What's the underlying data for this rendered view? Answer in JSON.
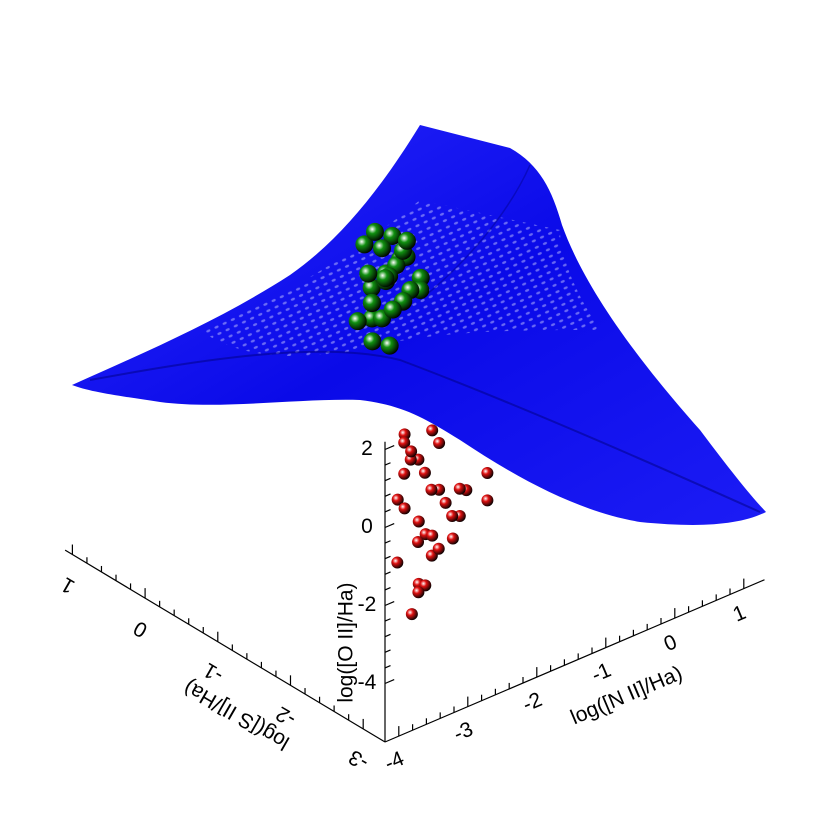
{
  "chart_data": {
    "type": "scatter3d",
    "xlabel": "log([N II]/Ha)",
    "ylabel": "log([S II]/Ha)",
    "zlabel": "log([O II]/Ha)",
    "xlim": [
      -4.2,
      1.3
    ],
    "ylim": [
      -3.3,
      1.1
    ],
    "zlim": [
      -5.5,
      2.2
    ],
    "xticks": [
      -4,
      -3,
      -2,
      -1,
      0,
      1
    ],
    "yticks": [
      -3,
      -2,
      -1,
      0,
      1
    ],
    "zticks": [
      -4,
      -2,
      0,
      2
    ],
    "series": [
      {
        "color": "#e01010",
        "x": [
          -3.6,
          -3.5,
          -3.4,
          -3.3,
          -3.2,
          -3.1,
          -3.0,
          -2.9,
          -2.8,
          -2.7,
          -3.6,
          -3.5,
          -3.3,
          -3.1,
          -2.9,
          -2.6,
          -2.4,
          -2.2,
          -2.0,
          -1.9,
          -3.7,
          -3.5,
          -3.4,
          -3.2,
          -3.0,
          -2.8,
          -3.6,
          -3.4,
          -3.3,
          -3.1,
          -2.5,
          -2.3,
          -2.1,
          -3.5,
          -3.2,
          -3.0,
          -3.6,
          -3.4,
          -2.7,
          -2.4
        ],
        "y": [
          -3.0,
          -2.9,
          -3.0,
          -2.8,
          -2.9,
          -3.0,
          -2.8,
          -2.9,
          -3.0,
          -2.8,
          -2.9,
          -3.1,
          -3.0,
          -2.9,
          -3.0,
          -2.9,
          -3.0,
          -2.9,
          -3.0,
          -3.1,
          -3.0,
          -2.9,
          -3.1,
          -3.0,
          -2.9,
          -3.0,
          -3.1,
          -3.0,
          -2.9,
          -3.0,
          -3.0,
          -2.9,
          -3.0,
          -3.1,
          -3.0,
          -2.9,
          -3.0,
          -2.9,
          -3.0,
          -3.0
        ],
        "z": [
          1.6,
          1.2,
          0.8,
          0.5,
          0.2,
          -0.2,
          -0.5,
          -0.8,
          -1.1,
          -1.4,
          -1.8,
          -2.2,
          -2.5,
          -2.0,
          -1.6,
          -0.7,
          -0.3,
          0.1,
          0.3,
          -0.2,
          0.0,
          0.4,
          -1.0,
          -1.3,
          -1.9,
          -0.4,
          -2.9,
          -2.6,
          -1.5,
          1.0,
          0.6,
          0.9,
          0.4,
          -0.6,
          1.4,
          1.8,
          -0.3,
          0.9,
          1.1,
          -1.0
        ]
      },
      {
        "color": "#109010",
        "x": [
          -0.8,
          -0.7,
          -0.6,
          -0.5,
          -0.4,
          -0.3,
          -0.2,
          -0.1,
          0.0,
          -0.75,
          -0.65,
          -0.55,
          -0.45,
          -0.35,
          -0.25,
          -0.15,
          -0.6,
          -0.5,
          -0.4,
          -0.3,
          -0.7,
          -0.45,
          -0.2,
          -0.55,
          -0.35,
          -0.65,
          -0.4,
          -0.3
        ],
        "y": [
          0.1,
          0.2,
          0.3,
          0.2,
          0.1,
          0.3,
          0.2,
          0.1,
          0.2,
          0.35,
          0.25,
          0.15,
          0.3,
          0.2,
          0.1,
          0.3,
          0.4,
          0.35,
          0.25,
          0.15,
          0.2,
          0.3,
          0.25,
          0.1,
          0.35,
          0.3,
          0.2,
          0.1
        ],
        "z": [
          -1.6,
          -1.2,
          -0.6,
          -0.2,
          0.2,
          0.5,
          0.0,
          -0.5,
          -1.0,
          -1.4,
          -0.9,
          -0.3,
          0.3,
          -0.1,
          -0.7,
          -1.3,
          0.4,
          0.7,
          -0.4,
          -1.0,
          -0.8,
          -1.5,
          0.1,
          -1.9,
          -0.6,
          -0.2,
          -1.2,
          0.6
        ]
      }
    ]
  }
}
